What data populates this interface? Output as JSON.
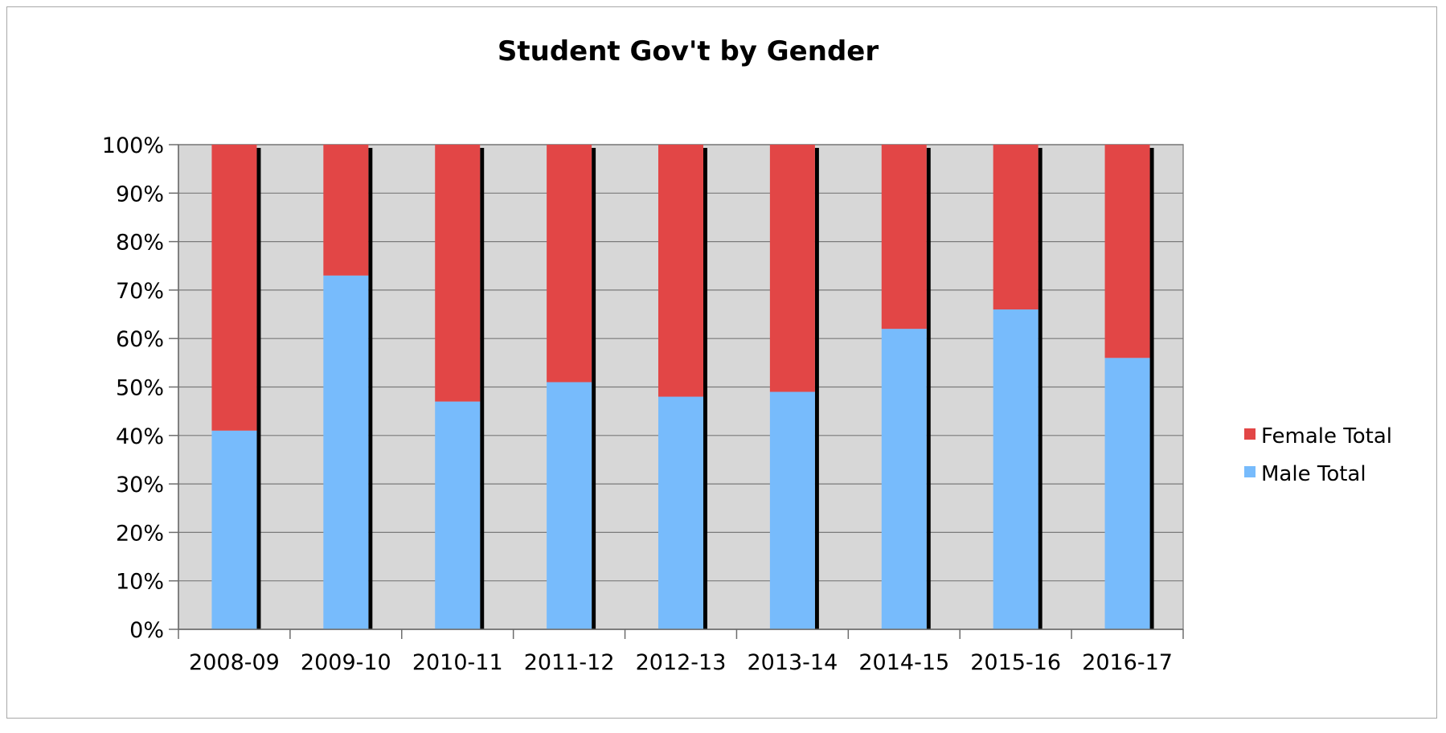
{
  "chart_data": {
    "type": "bar",
    "stacked": true,
    "percent_scale": true,
    "title": "Student Gov't by Gender",
    "xlabel": "",
    "ylabel": "",
    "categories": [
      "2008-09",
      "2009-10",
      "2010-11",
      "2011-12",
      "2012-13",
      "2013-14",
      "2014-15",
      "2015-16",
      "2016-17"
    ],
    "series": [
      {
        "name": "Male Total",
        "color": "#77bbfc",
        "values": [
          41,
          73,
          47,
          51,
          48,
          49,
          62,
          66,
          56
        ]
      },
      {
        "name": "Female Total",
        "color": "#e24646",
        "values": [
          59,
          27,
          53,
          49,
          52,
          51,
          38,
          34,
          44
        ]
      }
    ],
    "ylim": [
      0,
      100
    ],
    "yticks": [
      "0%",
      "10%",
      "20%",
      "30%",
      "40%",
      "50%",
      "60%",
      "70%",
      "80%",
      "90%",
      "100%"
    ],
    "grid": true,
    "plot_background": "#d7d7d7",
    "legend": {
      "position": "right",
      "entries": [
        "Female Total",
        "Male Total"
      ]
    }
  }
}
